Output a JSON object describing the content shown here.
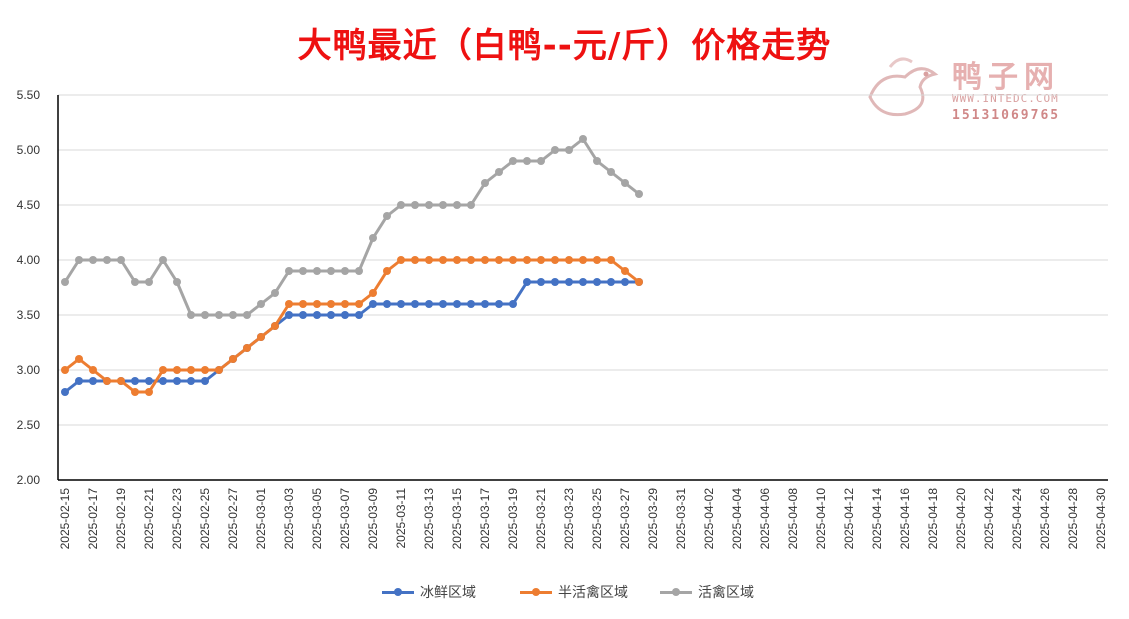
{
  "chart_data": {
    "type": "line",
    "title": "大鸭最近（白鸭--元/斤）价格走势",
    "ylim": [
      2.0,
      5.5
    ],
    "y_ticks": [
      "2.00",
      "2.50",
      "3.00",
      "3.50",
      "4.00",
      "4.50",
      "5.00",
      "5.50"
    ],
    "x_tick_labels": [
      "2025-02-15",
      "2025-02-17",
      "2025-02-19",
      "2025-02-21",
      "2025-02-23",
      "2025-02-25",
      "2025-02-27",
      "2025-03-01",
      "2025-03-03",
      "2025-03-05",
      "2025-03-07",
      "2025-03-09",
      "2025-03-11",
      "2025-03-13",
      "2025-03-15",
      "2025-03-17",
      "2025-03-19",
      "2025-03-21",
      "2025-03-23",
      "2025-03-25",
      "2025-03-27",
      "2025-03-29",
      "2025-03-31",
      "2025-04-02",
      "2025-04-04",
      "2025-04-06",
      "2025-04-08",
      "2025-04-10",
      "2025-04-12",
      "2025-04-14",
      "2025-04-16",
      "2025-04-18",
      "2025-04-20",
      "2025-04-22",
      "2025-04-24",
      "2025-04-26",
      "2025-04-28",
      "2025-04-30"
    ],
    "x_start": "2025-02-15",
    "x_end": "2025-04-30",
    "grid": true,
    "legend_position": "bottom",
    "series": [
      {
        "name": "冰鲜区域",
        "color": "#4472c4",
        "start_date": "2025-02-15",
        "values": [
          2.8,
          2.9,
          2.9,
          2.9,
          2.9,
          2.9,
          2.9,
          2.9,
          2.9,
          2.9,
          2.9,
          3.0,
          3.1,
          3.2,
          3.3,
          3.4,
          3.5,
          3.5,
          3.5,
          3.5,
          3.5,
          3.5,
          3.6,
          3.6,
          3.6,
          3.6,
          3.6,
          3.6,
          3.6,
          3.6,
          3.6,
          3.6,
          3.6,
          3.8,
          3.8,
          3.8,
          3.8,
          3.8,
          3.8,
          3.8,
          3.8,
          3.8
        ]
      },
      {
        "name": "半活禽区域",
        "color": "#ed7d31",
        "start_date": "2025-02-15",
        "values": [
          3.0,
          3.1,
          3.0,
          2.9,
          2.9,
          2.8,
          2.8,
          3.0,
          3.0,
          3.0,
          3.0,
          3.0,
          3.1,
          3.2,
          3.3,
          3.4,
          3.6,
          3.6,
          3.6,
          3.6,
          3.6,
          3.6,
          3.7,
          3.9,
          4.0,
          4.0,
          4.0,
          4.0,
          4.0,
          4.0,
          4.0,
          4.0,
          4.0,
          4.0,
          4.0,
          4.0,
          4.0,
          4.0,
          4.0,
          4.0,
          3.9,
          3.8
        ]
      },
      {
        "name": "活禽区域",
        "color": "#a5a5a5",
        "start_date": "2025-02-15",
        "values": [
          3.8,
          4.0,
          4.0,
          4.0,
          4.0,
          3.8,
          3.8,
          4.0,
          3.8,
          3.5,
          3.5,
          3.5,
          3.5,
          3.5,
          3.6,
          3.7,
          3.9,
          3.9,
          3.9,
          3.9,
          3.9,
          3.9,
          4.2,
          4.4,
          4.5,
          4.5,
          4.5,
          4.5,
          4.5,
          4.5,
          4.7,
          4.8,
          4.9,
          4.9,
          4.9,
          5.0,
          5.0,
          5.1,
          4.9,
          4.8,
          4.7,
          4.6
        ]
      }
    ]
  },
  "watermark": {
    "brand": "鸭子网",
    "site": "WWW.INTEDC.COM",
    "phone": "15131069765"
  }
}
